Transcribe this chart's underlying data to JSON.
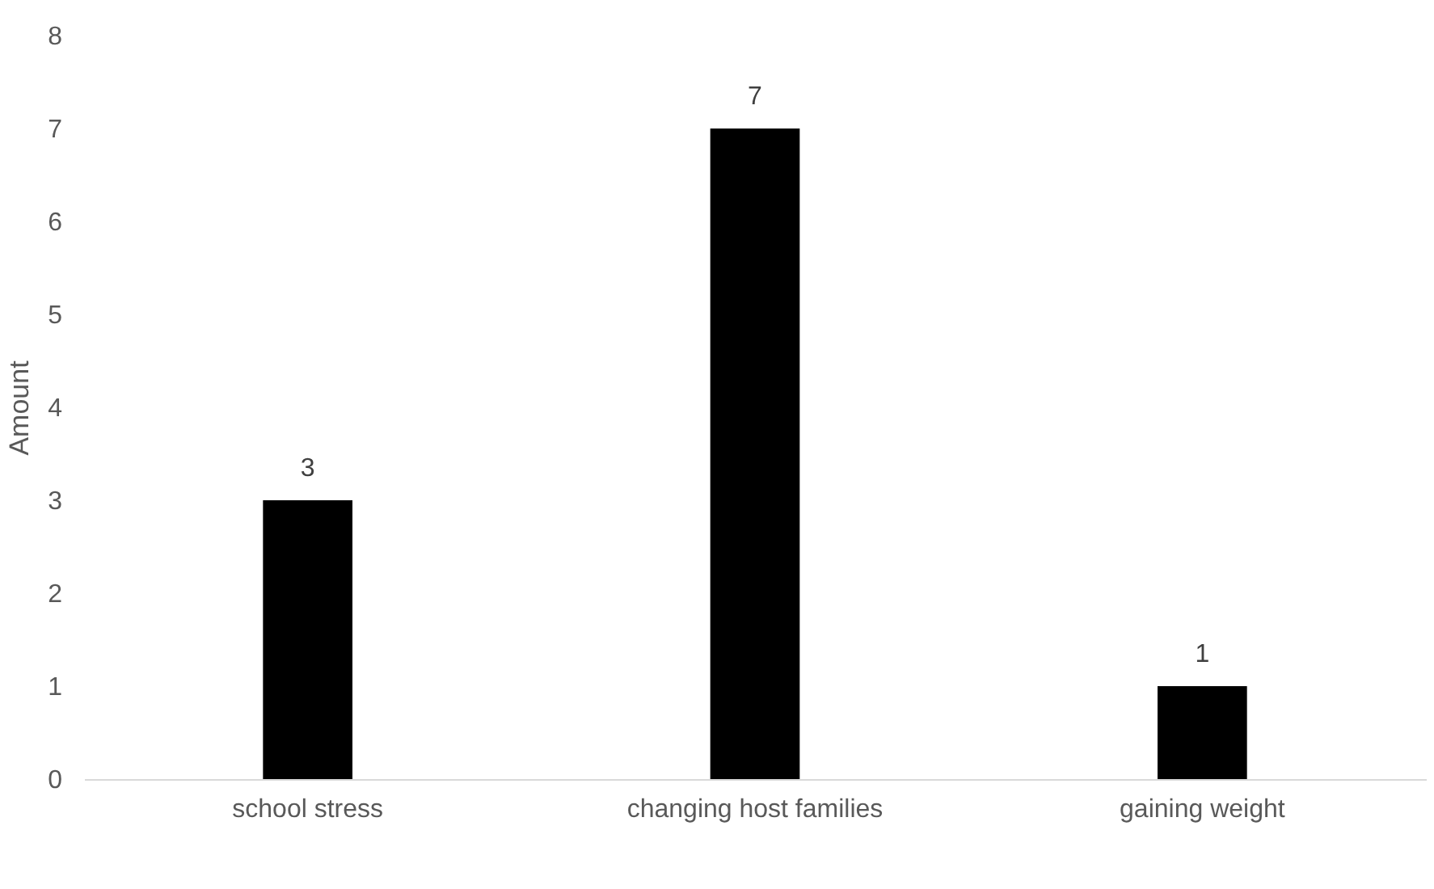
{
  "chart_data": {
    "type": "bar",
    "ylabel": "Amount",
    "categories": [
      "school stress",
      "changing host families",
      "gaining weight"
    ],
    "values": [
      3,
      7,
      1
    ],
    "color": "#000000",
    "ylim": [
      0,
      8
    ],
    "yticks": [
      0,
      1,
      2,
      3,
      4,
      5,
      6,
      7,
      8
    ],
    "grid": false,
    "data_labels": true
  }
}
